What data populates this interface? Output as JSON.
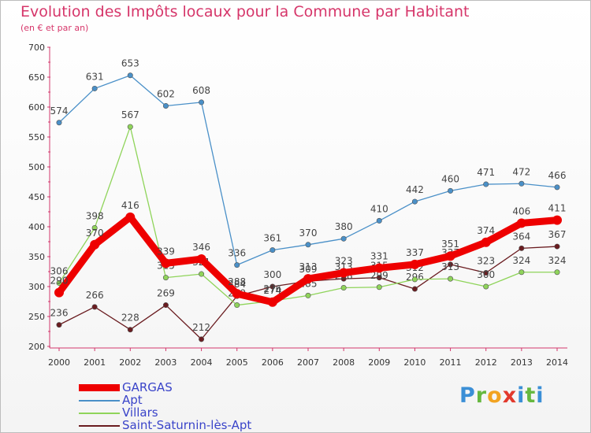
{
  "chart_data": {
    "type": "line",
    "title": "Evolution des Impôts locaux pour la Commune par Habitant",
    "subtitle": "(en € et par an)",
    "x": [
      "2000",
      "2001",
      "2002",
      "2003",
      "2004",
      "2005",
      "2006",
      "2007",
      "2008",
      "2009",
      "2010",
      "2011",
      "2012",
      "2013",
      "2014"
    ],
    "ylim": [
      200,
      700
    ],
    "yticks": [
      200,
      250,
      300,
      350,
      400,
      450,
      500,
      550,
      600,
      650,
      700
    ],
    "grid": false,
    "legend_position": "bottom-left",
    "series": [
      {
        "name": "GARGAS",
        "color": "#ee0000",
        "values": [
          290,
          370,
          416,
          339,
          346,
          288,
          274,
          313,
          323,
          331,
          337,
          351,
          374,
          406,
          411
        ],
        "labels": [
          "290",
          "370",
          "416",
          "339",
          "346",
          "288",
          "274",
          "313",
          "323",
          "331",
          "337",
          "351",
          "374",
          "406",
          "411"
        ]
      },
      {
        "name": "Apt",
        "color": "#4a90c8",
        "values": [
          574,
          631,
          653,
          602,
          608,
          336,
          361,
          370,
          380,
          410,
          442,
          460,
          471,
          472,
          466
        ],
        "labels": [
          "574",
          "631",
          "653",
          "602",
          "608",
          "336",
          "361",
          "370",
          "380",
          "410",
          "442",
          "460",
          "471",
          "472",
          "466"
        ]
      },
      {
        "name": "Villars",
        "color": "#8fd45a",
        "values": [
          306,
          398,
          567,
          315,
          321,
          269,
          276,
          285,
          298,
          299,
          312,
          313,
          300,
          324,
          324
        ],
        "labels": [
          "306",
          "398",
          "567",
          "315",
          "321",
          "269",
          "276",
          "285",
          "298",
          "299",
          "312",
          "313",
          "300",
          "324",
          "324"
        ]
      },
      {
        "name": "Saint-Saturnin-lès-Apt",
        "color": "#6a1c20",
        "values": [
          236,
          266,
          228,
          269,
          212,
          284,
          300,
          309,
          313,
          315,
          296,
          337,
          323,
          364,
          367
        ],
        "labels": [
          "236",
          "266",
          "228",
          "269",
          "212",
          "284",
          "300",
          "309",
          "313",
          "315",
          "296",
          "337",
          "323",
          "364",
          "367"
        ]
      }
    ]
  },
  "logo_text": "Proxiti"
}
